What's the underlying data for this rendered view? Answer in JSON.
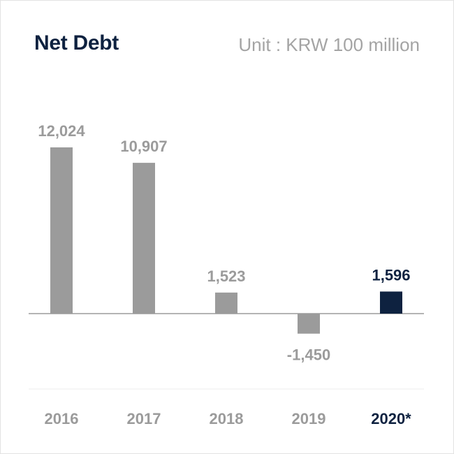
{
  "title": "Net Debt",
  "unit": "Unit : KRW 100 million",
  "colors": {
    "bar": "#9b9b9b",
    "highlight": "#0e2240",
    "label": "#9b9b9b",
    "axis": "#9b9b9b",
    "divider": "#ececec"
  },
  "chart_data": {
    "type": "bar",
    "categories": [
      "2016",
      "2017",
      "2018",
      "2019",
      "2020*"
    ],
    "values": [
      12024,
      10907,
      1523,
      -1450,
      1596
    ],
    "value_labels": [
      "12,024",
      "10,907",
      "1,523",
      "-1,450",
      "1,596"
    ],
    "highlight_index": 4,
    "ylim": [
      -3000,
      14000
    ],
    "grid": false
  }
}
